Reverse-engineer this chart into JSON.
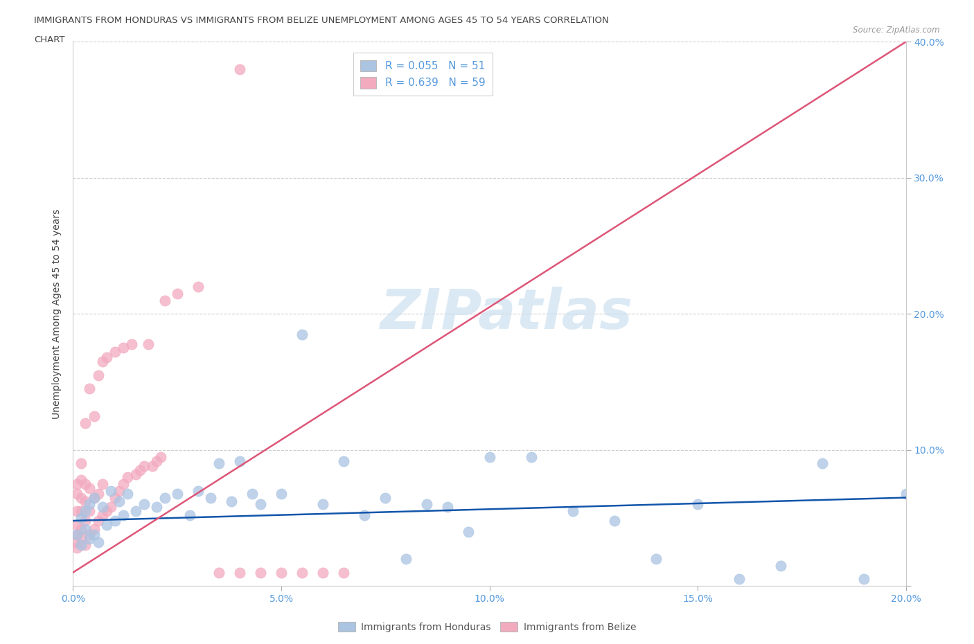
{
  "title_line1": "IMMIGRANTS FROM HONDURAS VS IMMIGRANTS FROM BELIZE UNEMPLOYMENT AMONG AGES 45 TO 54 YEARS CORRELATION",
  "title_line2": "CHART",
  "source": "Source: ZipAtlas.com",
  "ylabel": "Unemployment Among Ages 45 to 54 years",
  "xlim": [
    0.0,
    0.2
  ],
  "ylim": [
    0.0,
    0.4
  ],
  "xticks": [
    0.0,
    0.05,
    0.1,
    0.15,
    0.2
  ],
  "yticks": [
    0.0,
    0.1,
    0.2,
    0.3,
    0.4
  ],
  "xtick_labels": [
    "0.0%",
    "5.0%",
    "10.0%",
    "15.0%",
    "20.0%"
  ],
  "ytick_labels": [
    "",
    "10.0%",
    "20.0%",
    "30.0%",
    "40.0%"
  ],
  "legend_labels": [
    "Immigrants from Honduras",
    "Immigrants from Belize"
  ],
  "blue_R": 0.055,
  "blue_N": 51,
  "pink_R": 0.639,
  "pink_N": 59,
  "blue_color": "#aac4e2",
  "pink_color": "#f2aabf",
  "blue_line_color": "#1155aa",
  "pink_line_color": "#dd5577",
  "watermark_color": "#cce0f0",
  "background_color": "#ffffff",
  "grid_color": "#cccccc",
  "title_color": "#444444",
  "axis_label_color": "#5599dd",
  "blue_scatter_x": [
    0.001,
    0.002,
    0.002,
    0.003,
    0.003,
    0.004,
    0.004,
    0.005,
    0.005,
    0.006,
    0.007,
    0.008,
    0.009,
    0.01,
    0.011,
    0.012,
    0.013,
    0.015,
    0.017,
    0.02,
    0.022,
    0.025,
    0.028,
    0.03,
    0.033,
    0.035,
    0.038,
    0.04,
    0.043,
    0.045,
    0.05,
    0.055,
    0.06,
    0.065,
    0.07,
    0.075,
    0.08,
    0.085,
    0.09,
    0.095,
    0.1,
    0.11,
    0.12,
    0.13,
    0.14,
    0.15,
    0.16,
    0.17,
    0.18,
    0.19,
    0.2
  ],
  "blue_scatter_y": [
    0.038,
    0.03,
    0.05,
    0.042,
    0.055,
    0.035,
    0.06,
    0.038,
    0.065,
    0.032,
    0.058,
    0.045,
    0.07,
    0.048,
    0.062,
    0.052,
    0.068,
    0.055,
    0.06,
    0.058,
    0.065,
    0.068,
    0.052,
    0.07,
    0.065,
    0.09,
    0.062,
    0.092,
    0.068,
    0.06,
    0.068,
    0.185,
    0.06,
    0.092,
    0.052,
    0.065,
    0.02,
    0.06,
    0.058,
    0.04,
    0.095,
    0.095,
    0.055,
    0.048,
    0.02,
    0.06,
    0.005,
    0.015,
    0.09,
    0.005,
    0.068
  ],
  "pink_scatter_x": [
    0.0005,
    0.001,
    0.001,
    0.001,
    0.001,
    0.001,
    0.001,
    0.002,
    0.002,
    0.002,
    0.002,
    0.002,
    0.002,
    0.003,
    0.003,
    0.003,
    0.003,
    0.003,
    0.004,
    0.004,
    0.004,
    0.004,
    0.005,
    0.005,
    0.005,
    0.006,
    0.006,
    0.006,
    0.007,
    0.007,
    0.007,
    0.008,
    0.008,
    0.009,
    0.01,
    0.01,
    0.011,
    0.012,
    0.012,
    0.013,
    0.014,
    0.015,
    0.016,
    0.017,
    0.018,
    0.019,
    0.02,
    0.021,
    0.022,
    0.025,
    0.03,
    0.035,
    0.04,
    0.045,
    0.05,
    0.055,
    0.06,
    0.065,
    0.04
  ],
  "pink_scatter_y": [
    0.032,
    0.028,
    0.038,
    0.045,
    0.055,
    0.068,
    0.075,
    0.035,
    0.042,
    0.055,
    0.065,
    0.078,
    0.09,
    0.03,
    0.048,
    0.062,
    0.075,
    0.12,
    0.038,
    0.055,
    0.072,
    0.145,
    0.042,
    0.065,
    0.125,
    0.048,
    0.068,
    0.155,
    0.052,
    0.075,
    0.165,
    0.055,
    0.168,
    0.058,
    0.065,
    0.172,
    0.07,
    0.075,
    0.175,
    0.08,
    0.178,
    0.082,
    0.085,
    0.088,
    0.178,
    0.088,
    0.092,
    0.095,
    0.21,
    0.215,
    0.22,
    0.01,
    0.01,
    0.01,
    0.01,
    0.01,
    0.01,
    0.01,
    0.38
  ],
  "blue_trendline_x": [
    0.0,
    0.2
  ],
  "blue_trendline_y": [
    0.048,
    0.065
  ],
  "pink_trendline_x": [
    0.0,
    0.2
  ],
  "pink_trendline_y": [
    0.01,
    0.4
  ]
}
